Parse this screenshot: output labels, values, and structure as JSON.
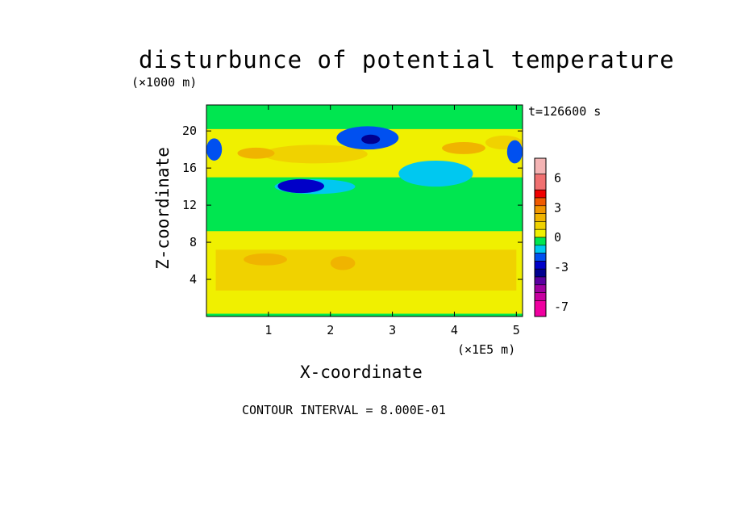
{
  "chart_data": {
    "type": "heatmap",
    "title": "disturbunce of potential temperature",
    "time_label": "t=126600 s",
    "xlabel": "X-coordinate",
    "ylabel": "Z-coordinate",
    "x_unit": "(×1E5 m)",
    "y_unit": "(×1000 m)",
    "xlim": [
      0,
      5.1
    ],
    "ylim": [
      0,
      22.8
    ],
    "x_ticks": [
      "1",
      "2",
      "3",
      "4",
      "5"
    ],
    "x_tick_values": [
      1,
      2,
      3,
      4,
      5
    ],
    "y_ticks": [
      "4",
      "8",
      "12",
      "16",
      "20"
    ],
    "y_tick_values": [
      4,
      8,
      12,
      16,
      20
    ],
    "contour_interval": "CONTOUR INTERVAL = 8.000E-01",
    "colorbar": {
      "tick_labels": [
        "6",
        "3",
        "0",
        "-3",
        "-7"
      ],
      "tick_values": [
        6,
        3,
        0,
        -3,
        -7
      ],
      "levels_top_to_bottom": [
        {
          "max": 8.0,
          "min": 6.4,
          "color": "#f4b4b4"
        },
        {
          "max": 6.4,
          "min": 4.8,
          "color": "#f07070"
        },
        {
          "max": 4.8,
          "min": 4.0,
          "color": "#f00000"
        },
        {
          "max": 4.0,
          "min": 3.2,
          "color": "#f05a00"
        },
        {
          "max": 3.2,
          "min": 2.4,
          "color": "#f09600"
        },
        {
          "max": 2.4,
          "min": 1.6,
          "color": "#f0b400"
        },
        {
          "max": 1.6,
          "min": 0.8,
          "color": "#f0d200"
        },
        {
          "max": 0.8,
          "min": 0.0,
          "color": "#f0f000"
        },
        {
          "max": 0.0,
          "min": -0.8,
          "color": "#00e650"
        },
        {
          "max": -0.8,
          "min": -1.6,
          "color": "#00c8f0"
        },
        {
          "max": -1.6,
          "min": -2.4,
          "color": "#0050f0"
        },
        {
          "max": -2.4,
          "min": -3.2,
          "color": "#0000c8"
        },
        {
          "max": -3.2,
          "min": -4.0,
          "color": "#000090"
        },
        {
          "max": -4.0,
          "min": -4.8,
          "color": "#5a00a0"
        },
        {
          "max": -4.8,
          "min": -5.6,
          "color": "#a000a0"
        },
        {
          "max": -5.6,
          "min": -6.4,
          "color": "#c800a0"
        },
        {
          "max": -6.4,
          "min": -8.0,
          "color": "#f000a0"
        }
      ]
    },
    "field_regions": [
      {
        "x": [
          0.0,
          5.1
        ],
        "z": [
          0.0,
          22.8
        ],
        "value": 0.4
      },
      {
        "x": [
          0.0,
          5.1
        ],
        "z": [
          9.2,
          15.0
        ],
        "value": -0.4
      },
      {
        "x": [
          0.0,
          5.1
        ],
        "z": [
          20.2,
          22.8
        ],
        "value": -0.4
      },
      {
        "x": [
          0.0,
          5.1
        ],
        "z": [
          0.0,
          0.3
        ],
        "value": -0.4
      },
      {
        "x": [
          0.15,
          5.0
        ],
        "z": [
          2.8,
          7.2
        ],
        "value": 1.2
      },
      {
        "x": [
          0.6,
          1.3
        ],
        "z": [
          5.5,
          6.8
        ],
        "value": 2.0
      },
      {
        "x": [
          2.0,
          2.4
        ],
        "z": [
          5.0,
          6.5
        ],
        "value": 2.0
      },
      {
        "x": [
          0.9,
          2.6
        ],
        "z": [
          16.5,
          18.5
        ],
        "value": 1.2
      },
      {
        "x": [
          0.5,
          1.1
        ],
        "z": [
          17.0,
          18.2
        ],
        "value": 2.0
      },
      {
        "x": [
          3.8,
          4.5
        ],
        "z": [
          17.5,
          18.8
        ],
        "value": 2.0
      },
      {
        "x": [
          4.5,
          5.1
        ],
        "z": [
          18.0,
          19.5
        ],
        "value": 1.2
      },
      {
        "x": [
          1.1,
          2.4
        ],
        "z": [
          13.2,
          14.8
        ],
        "value": -1.2
      },
      {
        "x": [
          3.1,
          4.3
        ],
        "z": [
          14.0,
          16.8
        ],
        "value": -1.2
      },
      {
        "x": [
          2.1,
          3.1
        ],
        "z": [
          18.0,
          20.5
        ],
        "value": -2.0
      },
      {
        "x": [
          0.0,
          0.25
        ],
        "z": [
          16.8,
          19.2
        ],
        "value": -2.0
      },
      {
        "x": [
          4.85,
          5.1
        ],
        "z": [
          16.5,
          19.0
        ],
        "value": -2.0
      },
      {
        "x": [
          1.15,
          1.9
        ],
        "z": [
          13.3,
          14.8
        ],
        "value": -2.8
      },
      {
        "x": [
          2.5,
          2.8
        ],
        "z": [
          18.6,
          19.6
        ],
        "value": -3.6
      }
    ]
  }
}
